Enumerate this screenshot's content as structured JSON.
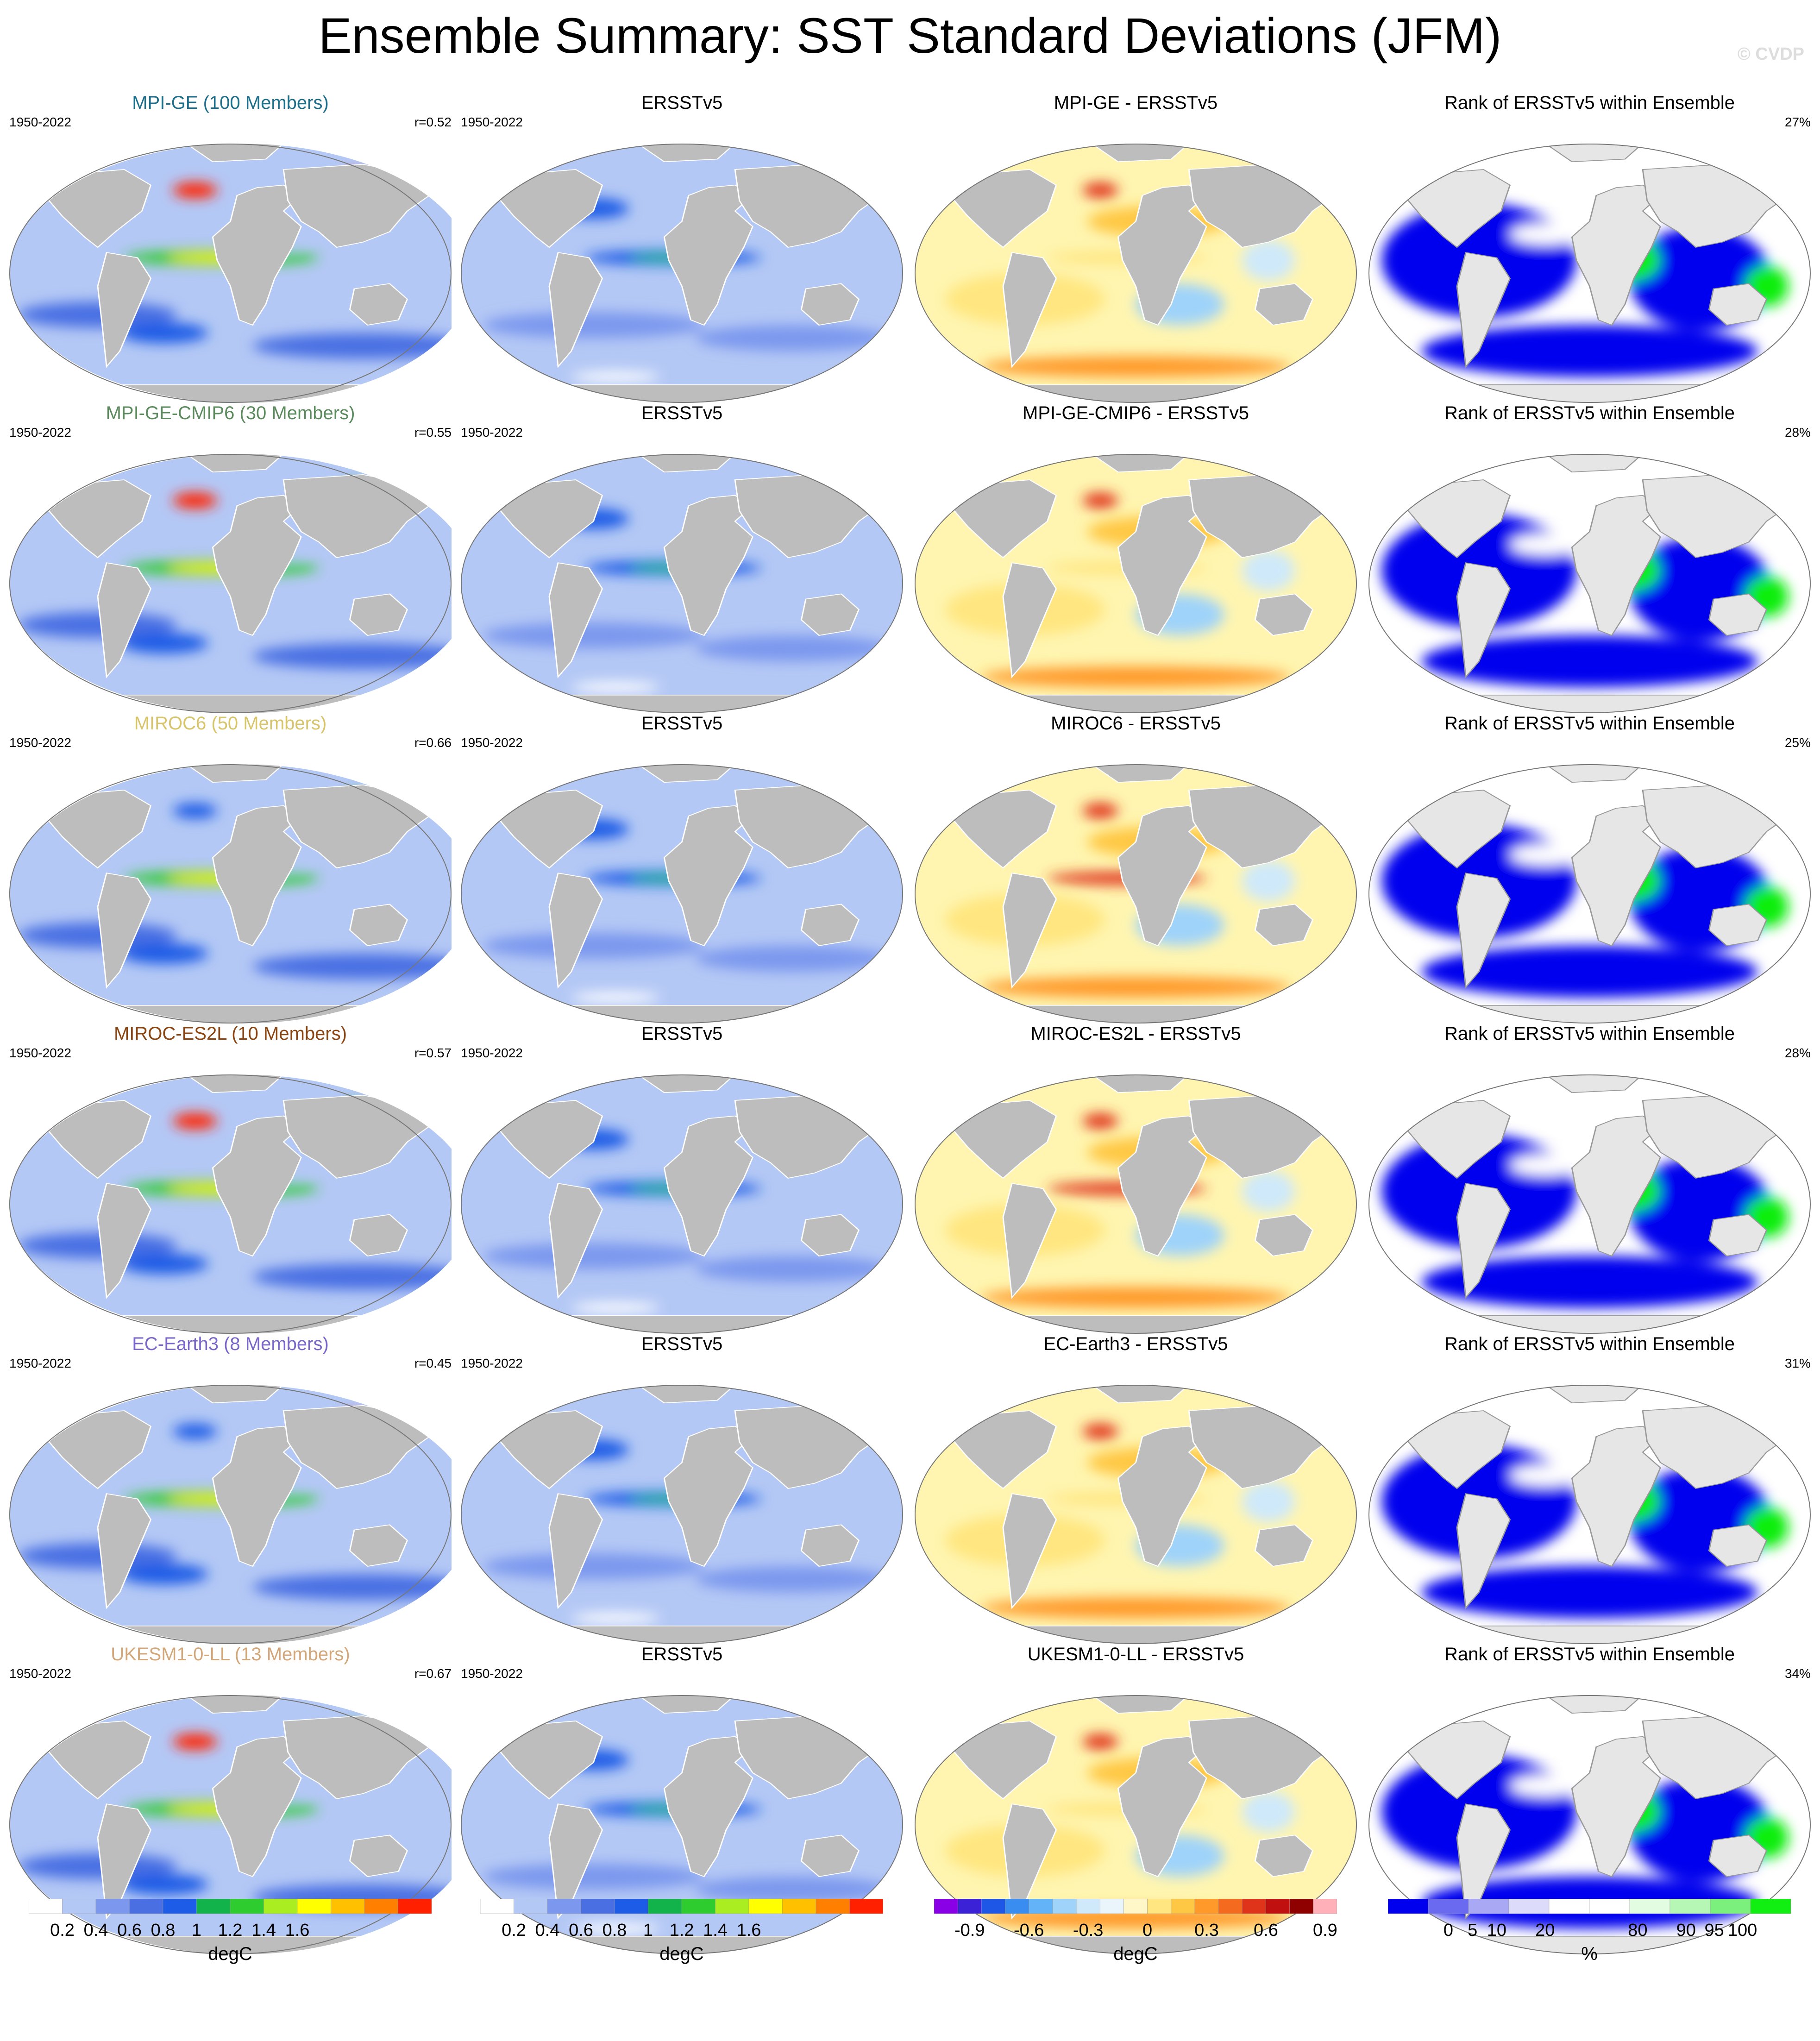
{
  "title": "Ensemble Summary: SST Standard Deviations (JFM)",
  "watermark": "© CVDP",
  "chart_data": {
    "type": "heatmap",
    "projection": "global map (Robinson-like ellipse)",
    "column_titles": [
      "ERSSTv5",
      "Rank of ERSSTv5 within Ensemble"
    ],
    "rows": [
      {
        "model": "MPI-GE (100 Members)",
        "diff_title": "MPI-GE - ERSSTv5",
        "years": "1950-2022",
        "pattern_corr": "r=0.52",
        "rank_pct": "27%",
        "color": "#1d6e8a"
      },
      {
        "model": "MPI-GE-CMIP6 (30 Members)",
        "diff_title": "MPI-GE-CMIP6 - ERSSTv5",
        "years": "1950-2022",
        "pattern_corr": "r=0.55",
        "rank_pct": "28%",
        "color": "#5b8a5c"
      },
      {
        "model": "MIROC6 (50 Members)",
        "diff_title": "MIROC6 - ERSSTv5",
        "years": "1950-2022",
        "pattern_corr": "r=0.66",
        "rank_pct": "25%",
        "color": "#d8c46a"
      },
      {
        "model": "MIROC-ES2L (10 Members)",
        "diff_title": "MIROC-ES2L - ERSSTv5",
        "years": "1950-2022",
        "pattern_corr": "r=0.57",
        "rank_pct": "28%",
        "color": "#8b4513"
      },
      {
        "model": "EC-Earth3 (8 Members)",
        "diff_title": "EC-Earth3 - ERSSTv5",
        "years": "1950-2022",
        "pattern_corr": "r=0.45",
        "rank_pct": "31%",
        "color": "#7a66c9"
      },
      {
        "model": "UKESM1-0-LL (13 Members)",
        "diff_title": "UKESM1-0-LL - ERSSTv5",
        "years": "1950-2022",
        "pattern_corr": "r=0.67",
        "rank_pct": "34%",
        "color": "#d2a679"
      }
    ],
    "colorbars": [
      {
        "kind": "std",
        "unit": "degC",
        "ticks": [
          "0.2",
          "0.4",
          "0.6",
          "0.8",
          "1",
          "1.2",
          "1.4",
          "1.6"
        ],
        "colors": [
          "#ffffff",
          "#b4c8f5",
          "#7b98ee",
          "#4a6fe3",
          "#1c5ce6",
          "#11b34a",
          "#2ecc2e",
          "#aaee22",
          "#ffff00",
          "#ffc000",
          "#ff8000",
          "#ff2000"
        ]
      },
      {
        "kind": "std",
        "unit": "degC",
        "ticks": [
          "0.2",
          "0.4",
          "0.6",
          "0.8",
          "1",
          "1.2",
          "1.4",
          "1.6"
        ],
        "colors": [
          "#ffffff",
          "#b4c8f5",
          "#7b98ee",
          "#4a6fe3",
          "#1c5ce6",
          "#11b34a",
          "#2ecc2e",
          "#aaee22",
          "#ffff00",
          "#ffc000",
          "#ff8000",
          "#ff2000"
        ]
      },
      {
        "kind": "diff",
        "unit": "degC",
        "ticks": [
          "-0.9",
          "-0.6",
          "-0.3",
          "0",
          "0.3",
          "0.6",
          "0.9"
        ],
        "colors": [
          "#8a00e6",
          "#3c22d6",
          "#1e56e6",
          "#3a8df0",
          "#62b3f7",
          "#9fd3fa",
          "#cfe9fb",
          "#eaf5fb",
          "#fff7c8",
          "#ffe680",
          "#ffc844",
          "#ff9a2a",
          "#f46a1e",
          "#e0341a",
          "#c01010",
          "#8f0000",
          "#ffb0b8"
        ]
      },
      {
        "kind": "rank",
        "unit": "%",
        "ticks": [
          "0",
          "5",
          "10",
          "20",
          "80",
          "90",
          "95",
          "100"
        ],
        "colors": [
          "#0000ee",
          "#6a6af0",
          "#a8a8f5",
          "#dcdcfa",
          "#ffffff",
          "#ffffff",
          "#e2fce2",
          "#b6f7b6",
          "#7cf07c",
          "#11ee11"
        ]
      }
    ]
  }
}
